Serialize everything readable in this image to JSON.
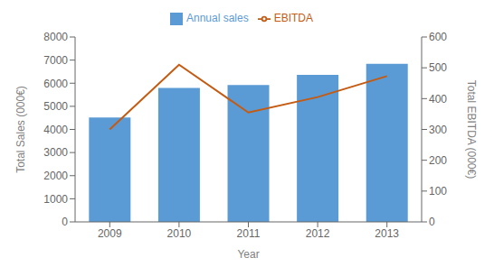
{
  "chart_data": {
    "type": "bar",
    "xlabel": "Year",
    "ylabel": "Total Sales (000€)",
    "y2label": "Total EBITDA (000€)",
    "categories": [
      "2009",
      "2010",
      "2011",
      "2012",
      "2013"
    ],
    "series": [
      {
        "name": "Annual sales",
        "type": "bar",
        "color": "#5B9BD5",
        "values": [
          4520,
          5800,
          5920,
          6360,
          6840
        ]
      },
      {
        "name": "EBITDA",
        "type": "line",
        "color": "#C55A11",
        "axis": "y2",
        "values": [
          300,
          510,
          355,
          405,
          473
        ]
      }
    ],
    "ylim": [
      0,
      8000
    ],
    "yticks": [
      0,
      1000,
      2000,
      3000,
      4000,
      5000,
      6000,
      7000,
      8000
    ],
    "y2lim": [
      0,
      600
    ],
    "y2ticks": [
      0,
      100,
      200,
      300,
      400,
      500,
      600
    ],
    "grid": false,
    "legend": "top"
  }
}
